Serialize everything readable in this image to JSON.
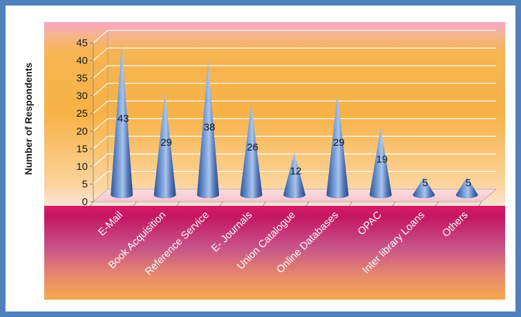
{
  "chart_data": {
    "type": "bar",
    "shape": "cone",
    "categories": [
      "E-Mail",
      "Book Acquisition",
      "Reference Service",
      "E- Journals",
      "Union Catalogue",
      "Online Databases",
      "OPAC",
      "Inter library Loans",
      "Others"
    ],
    "values": [
      43,
      29,
      38,
      26,
      12,
      29,
      19,
      5,
      5
    ],
    "data_labels": [
      "43",
      "29",
      "38",
      "26",
      "12",
      "29",
      "19",
      "5",
      "5"
    ],
    "xlabel": "",
    "ylabel": "Number of Respondents",
    "ylim": [
      0,
      45
    ],
    "yticks": [
      0,
      5,
      10,
      15,
      20,
      25,
      30,
      35,
      40,
      45
    ],
    "grid": true,
    "legend": "none",
    "colors": {
      "frame": "#4f81bd",
      "cone_dark": "#2f5597",
      "cone_light": "#a9c4ec",
      "gridline": "#ffffff",
      "text": "#1a1a1a"
    }
  }
}
